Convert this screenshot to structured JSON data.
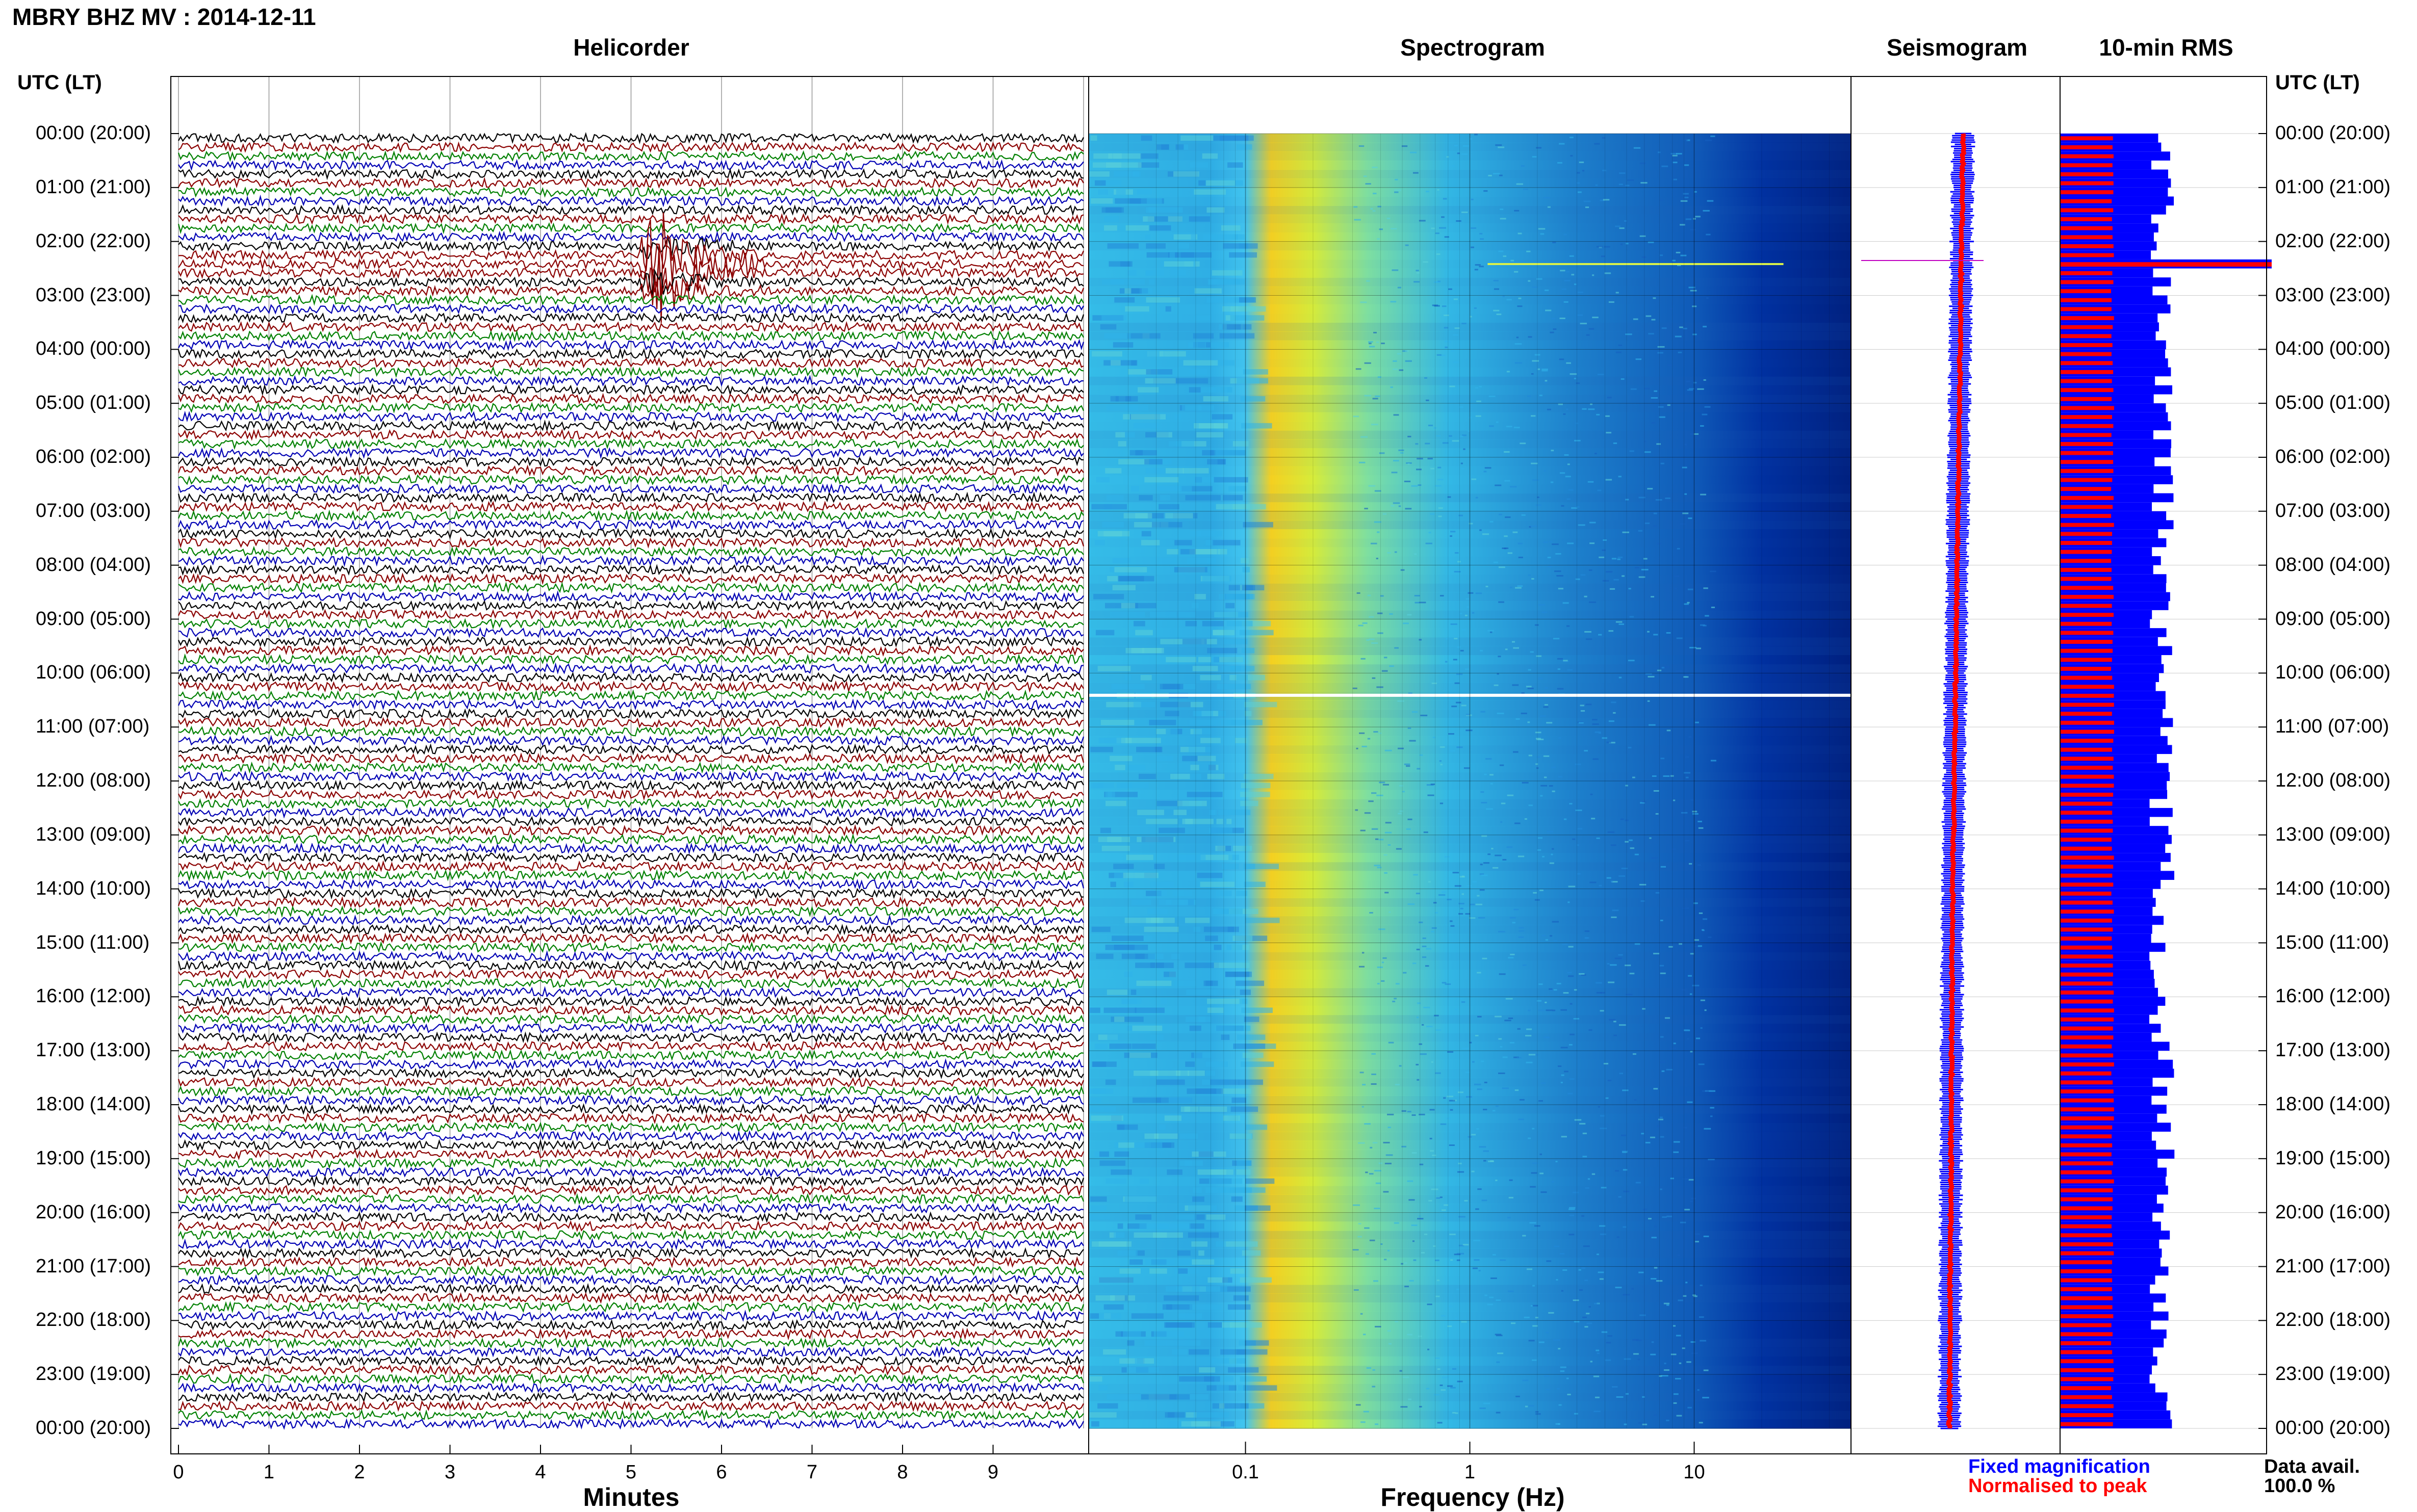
{
  "header": {
    "title": "MBRY BHZ MV : 2014-12-11",
    "panel_titles": [
      "Helicorder",
      "Spectrogram",
      "Seismogram",
      "10-min RMS"
    ],
    "utc_label_left": "UTC (LT)",
    "utc_label_right": "UTC (LT)"
  },
  "time_labels": [
    "00:00 (20:00)",
    "01:00 (21:00)",
    "02:00 (22:00)",
    "03:00 (23:00)",
    "04:00 (00:00)",
    "05:00 (01:00)",
    "06:00 (02:00)",
    "07:00 (03:00)",
    "08:00 (04:00)",
    "09:00 (05:00)",
    "10:00 (06:00)",
    "11:00 (07:00)",
    "12:00 (08:00)",
    "13:00 (09:00)",
    "14:00 (10:00)",
    "15:00 (11:00)",
    "16:00 (12:00)",
    "17:00 (13:00)",
    "18:00 (14:00)",
    "19:00 (15:00)",
    "20:00 (16:00)",
    "21:00 (17:00)",
    "22:00 (18:00)",
    "23:00 (19:00)",
    "00:00 (20:00)"
  ],
  "footer": {
    "legend_fixed": "Fixed magnification",
    "legend_normalised": "Normalised to peak",
    "data_avail_label": "Data avail.",
    "data_avail_value": "100.0 %"
  },
  "colors": {
    "trace_cycle": [
      "#000000",
      "#8b0000",
      "#008000",
      "#0000b4"
    ],
    "fixed": "#0000ff",
    "normalised": "#ff0000",
    "event": "#8b0000"
  },
  "chart_data": [
    {
      "type": "line",
      "title": "Helicorder",
      "xlabel": "Minutes",
      "x_ticks": [
        "0",
        "1",
        "2",
        "3",
        "4",
        "5",
        "6",
        "7",
        "8",
        "9"
      ],
      "xlim": [
        0,
        10
      ],
      "rows": 144,
      "row_minutes": 10,
      "event": {
        "utc": "02:10 to 02:50",
        "minute": 5.3,
        "peak_row": 14,
        "rows": [
          12,
          13,
          14,
          15,
          16,
          17
        ]
      }
    },
    {
      "type": "heatmap",
      "title": "Spectrogram",
      "xlabel": "Frequency (Hz)",
      "x_ticks": [
        "0.1",
        "1",
        "10"
      ],
      "x_scale": "log",
      "xlim": [
        0.02,
        50
      ],
      "bands": [
        {
          "freq_hz": 0.02,
          "color": "#35bde8"
        },
        {
          "freq_hz": 0.07,
          "color": "#2fb0e6"
        },
        {
          "freq_hz": 0.1,
          "color": "#42c6f0"
        },
        {
          "freq_hz": 0.13,
          "color": "#f5d020"
        },
        {
          "freq_hz": 0.2,
          "color": "#d6ec3a"
        },
        {
          "freq_hz": 0.35,
          "color": "#7fe0a0"
        },
        {
          "freq_hz": 0.8,
          "color": "#33b9e6"
        },
        {
          "freq_hz": 3,
          "color": "#1d80cc"
        },
        {
          "freq_hz": 10,
          "color": "#0f5ab8"
        },
        {
          "freq_hz": 20,
          "color": "#0030a0"
        },
        {
          "freq_hz": 50,
          "color": "#00207f"
        }
      ],
      "gap_utc": "10:20",
      "event_line": {
        "utc": "02:20",
        "freq_range_hz": [
          1.2,
          25
        ]
      }
    },
    {
      "type": "line",
      "title": "Seismogram",
      "series": [
        {
          "name": "Fixed magnification"
        },
        {
          "name": "Normalised to peak"
        }
      ]
    },
    {
      "type": "bar",
      "title": "10-min RMS",
      "rows": 144,
      "series": [
        {
          "name": "Fixed magnification"
        },
        {
          "name": "Normalised to peak"
        }
      ],
      "spike_row": 14
    }
  ]
}
